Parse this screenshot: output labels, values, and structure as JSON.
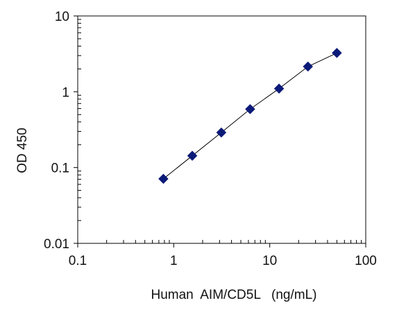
{
  "chart_data": {
    "type": "scatter",
    "title": "",
    "xlabel": "Human  AIM/CD5L   (ng/mL)",
    "ylabel": "OD 450",
    "x_scale": "log",
    "y_scale": "log",
    "xlim": [
      0.1,
      100
    ],
    "ylim": [
      0.01,
      10
    ],
    "x_ticks": [
      0.1,
      1,
      10,
      100
    ],
    "x_tick_labels": [
      "0.1",
      "1",
      "10",
      "100"
    ],
    "y_ticks": [
      0.01,
      0.1,
      1,
      10
    ],
    "y_tick_labels": [
      "0.01",
      "0.1",
      "1",
      "10"
    ],
    "grid": false,
    "legend": "none",
    "marker": "diamond",
    "marker_color": "#0b1a78",
    "line_color": "#000000",
    "series": [
      {
        "x": [
          0.78,
          1.56,
          3.13,
          6.25,
          12.5,
          25,
          50
        ],
        "y": [
          0.071,
          0.143,
          0.29,
          0.59,
          1.1,
          2.15,
          3.25
        ]
      }
    ]
  }
}
